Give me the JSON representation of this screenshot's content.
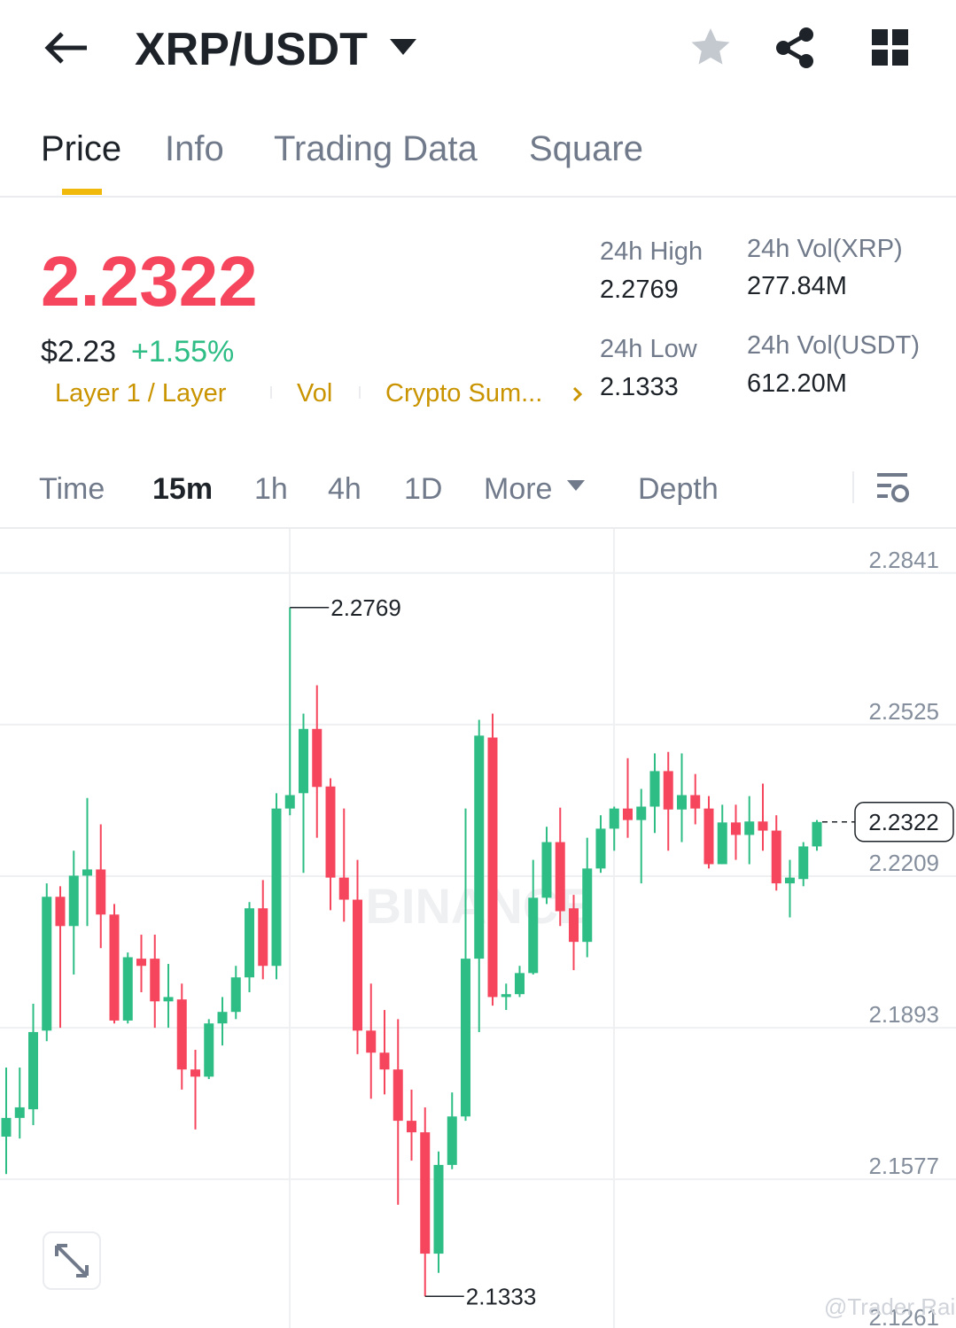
{
  "header": {
    "pair": "XRP/USDT"
  },
  "tabs": [
    "Price",
    "Info",
    "Trading Data",
    "Square"
  ],
  "price": {
    "last": "2.2322",
    "usd": "$2.23",
    "change": "+1.55%",
    "tags": [
      "Layer 1 / Layer",
      "Vol",
      "Crypto Sum..."
    ]
  },
  "stats": [
    {
      "label": "24h High",
      "value": "2.2769"
    },
    {
      "label": "24h Vol(XRP)",
      "value": "277.84M"
    },
    {
      "label": "24h Low",
      "value": "2.1333"
    },
    {
      "label": "24h Vol(USDT)",
      "value": "612.20M"
    }
  ],
  "intervals": [
    "Time",
    "15m",
    "1h",
    "4h",
    "1D",
    "More",
    "Depth"
  ],
  "watermark": "BINANCE",
  "credit": "@Trader Rai",
  "chart_data": {
    "type": "candlestick",
    "up_color": "#2ebd85",
    "down_color": "#f6465d",
    "grid": true,
    "ylim": [
      2.1267,
      2.2933
    ],
    "yticks": [
      2.2841,
      2.2525,
      2.2209,
      2.1893,
      2.1577,
      2.1261
    ],
    "open": [
      2.1666,
      2.1705,
      2.1723,
      2.1887,
      2.2166,
      2.2105,
      2.221,
      2.2223,
      2.2129,
      2.1908,
      2.2037,
      2.2037,
      2.1948,
      2.1952,
      2.1806,
      2.1791,
      2.1902,
      2.1926,
      2.1998,
      2.2142,
      2.2022,
      2.235,
      2.2382,
      2.2516,
      2.2396,
      2.2206,
      2.216,
      2.1887,
      2.1841,
      2.1806,
      2.1699,
      2.1675,
      2.1422,
      2.1607,
      2.1708,
      2.2037,
      2.2498,
      2.1957,
      2.1963,
      2.2007,
      2.2164,
      2.228,
      2.2142,
      2.2072,
      2.2225,
      2.2308,
      2.235,
      2.2326,
      2.2354,
      2.2428,
      2.2348,
      2.2378,
      2.235,
      2.2234,
      2.2321,
      2.2295,
      2.2323,
      2.2304,
      2.2194,
      2.2203,
      2.2271
    ],
    "high": [
      2.181,
      2.181,
      2.1943,
      2.2194,
      2.2188,
      2.2262,
      2.2372,
      2.2317,
      2.2151,
      2.205,
      2.2087,
      2.2087,
      2.2026,
      2.1985,
      2.1847,
      2.1911,
      2.1957,
      2.2022,
      2.2155,
      2.2201,
      2.2382,
      2.2769,
      2.2548,
      2.2607,
      2.2413,
      2.235,
      2.2243,
      2.1985,
      2.193,
      2.1911,
      2.1764,
      2.1727,
      2.1635,
      2.1758,
      2.235,
      2.2535,
      2.2548,
      2.1985,
      2.2022,
      2.2243,
      2.2312,
      2.2352,
      2.217,
      2.2289,
      2.2336,
      2.2354,
      2.2455,
      2.2391,
      2.2465,
      2.2468,
      2.2465,
      2.2422,
      2.2376,
      2.2358,
      2.2358,
      2.2376,
      2.2402,
      2.2336,
      2.2243,
      2.228,
      2.2326
    ],
    "low": [
      2.1588,
      2.1662,
      2.169,
      2.1865,
      2.1893,
      2.2004,
      2.2105,
      2.2059,
      2.1902,
      2.1902,
      2.1967,
      2.1893,
      2.1893,
      2.1764,
      2.1681,
      2.1786,
      2.1856,
      2.1911,
      2.1967,
      2.1994,
      2.1994,
      2.2336,
      2.2216,
      2.2289,
      2.2138,
      2.2114,
      2.1838,
      2.1745,
      2.1754,
      2.1524,
      2.1616,
      2.1333,
      2.1382,
      2.1598,
      2.1699,
      2.1884,
      2.1939,
      2.193,
      2.1957,
      2.2004,
      2.2151,
      2.2105,
      2.2013,
      2.204,
      2.2216,
      2.2262,
      2.2289,
      2.2194,
      2.2299,
      2.2262,
      2.228,
      2.2317,
      2.2225,
      2.2234,
      2.2243,
      2.2234,
      2.2262,
      2.2179,
      2.2123,
      2.2188,
      2.2262
    ],
    "close": [
      2.1705,
      2.1727,
      2.1884,
      2.2166,
      2.2105,
      2.221,
      2.2223,
      2.2129,
      2.1908,
      2.204,
      2.2022,
      2.1948,
      2.1957,
      2.1806,
      2.1791,
      2.1902,
      2.1926,
      2.1998,
      2.2142,
      2.2022,
      2.235,
      2.2378,
      2.2516,
      2.2395,
      2.2206,
      2.216,
      2.1887,
      2.1841,
      2.1806,
      2.1699,
      2.1675,
      2.1422,
      2.1607,
      2.1708,
      2.2037,
      2.2502,
      2.1957,
      2.1963,
      2.2007,
      2.2164,
      2.228,
      2.2136,
      2.2072,
      2.2225,
      2.2308,
      2.235,
      2.2326,
      2.2354,
      2.2428,
      2.2348,
      2.2378,
      2.235,
      2.2234,
      2.2321,
      2.2295,
      2.2323,
      2.2304,
      2.2194,
      2.2206,
      2.2271,
      2.2322
    ]
  }
}
